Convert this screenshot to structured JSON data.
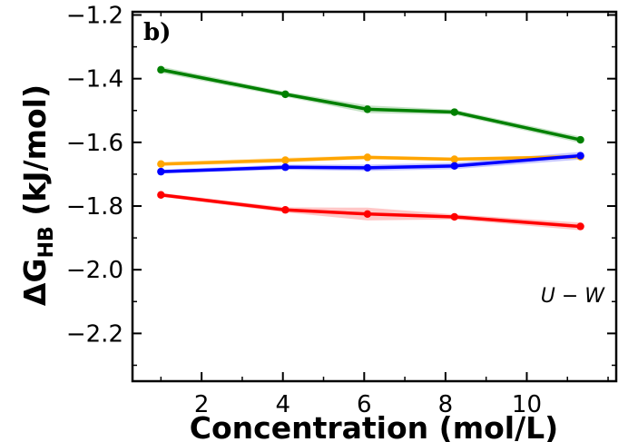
{
  "chart_data": {
    "type": "line",
    "title": "",
    "panel_label": "b)",
    "annotation": "U − W",
    "xlabel": "Concentration (mol/L)",
    "ylabel_prefix": "ΔG",
    "ylabel_sub": "HB",
    "ylabel_suffix": " (kJ/mol)",
    "xlim": [
      0.3,
      12.2
    ],
    "ylim": [
      -2.35,
      -1.19
    ],
    "x_ticks": [
      2,
      4,
      6,
      8,
      10
    ],
    "x_tick_labels": [
      "2",
      "4",
      "6",
      "8",
      "10"
    ],
    "y_ticks": [
      -2.2,
      -2.0,
      -1.8,
      -1.6,
      -1.4,
      -1.2
    ],
    "y_tick_labels": [
      "−2.2",
      "−2.0",
      "−1.8",
      "−1.6",
      "−1.4",
      "−1.2"
    ],
    "x": [
      1.0,
      4.06,
      6.08,
      8.22,
      11.32
    ],
    "series": [
      {
        "name": "green",
        "color": "#008000",
        "values": [
          -1.372,
          -1.449,
          -1.496,
          -1.505,
          -1.592
        ],
        "band": [
          0.01,
          0.008,
          0.012,
          0.008,
          0.01
        ]
      },
      {
        "name": "orange",
        "color": "#ffa500",
        "values": [
          -1.668,
          -1.656,
          -1.647,
          -1.653,
          -1.645
        ],
        "band": [
          0.006,
          0.008,
          0.006,
          0.006,
          0.006
        ]
      },
      {
        "name": "blue",
        "color": "#0000ff",
        "values": [
          -1.692,
          -1.678,
          -1.68,
          -1.674,
          -1.642
        ],
        "band": [
          0.006,
          0.008,
          0.01,
          0.01,
          0.012
        ]
      },
      {
        "name": "red",
        "color": "#ff0000",
        "values": [
          -1.765,
          -1.812,
          -1.825,
          -1.834,
          -1.864
        ],
        "band": [
          0.006,
          0.008,
          0.02,
          0.008,
          0.012
        ]
      }
    ]
  }
}
